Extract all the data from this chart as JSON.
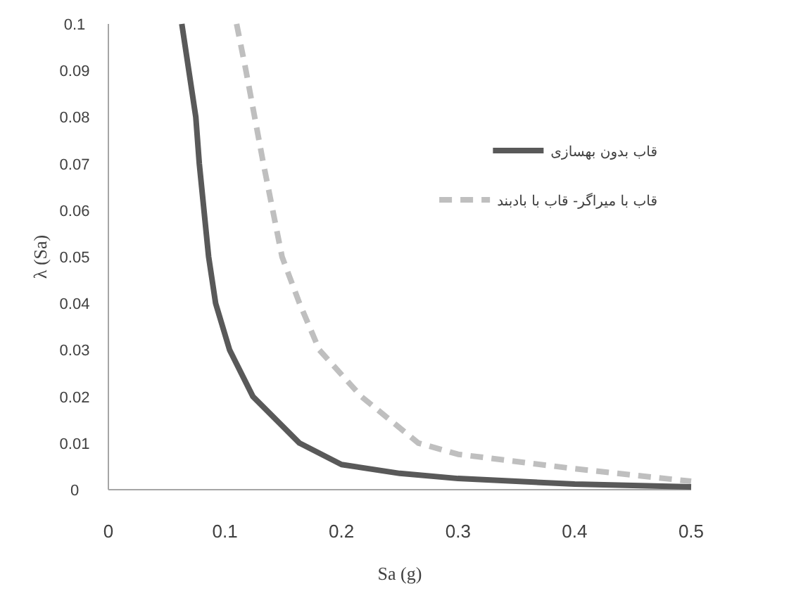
{
  "chart_data": {
    "type": "line",
    "xlabel": "Sa (g)",
    "ylabel": "λ (Sa)",
    "xlim": [
      0,
      0.5
    ],
    "ylim": [
      0,
      0.1
    ],
    "xticks": [
      0,
      0.1,
      0.2,
      0.3,
      0.4,
      0.5
    ],
    "yticks": [
      0,
      0.01,
      0.02,
      0.03,
      0.04,
      0.05,
      0.06,
      0.07,
      0.08,
      0.09,
      0.1
    ],
    "grid": false,
    "legend": "top right",
    "marker": "none",
    "series": [
      {
        "name": "قاب بدون بهسازی",
        "color": "#595959",
        "line_style": "solid",
        "x": [
          0.063,
          0.075,
          0.078,
          0.086,
          0.092,
          0.104,
          0.124,
          0.164,
          0.2,
          0.25,
          0.3,
          0.4,
          0.5
        ],
        "values": [
          0.1,
          0.08,
          0.07,
          0.05,
          0.04,
          0.03,
          0.02,
          0.01,
          0.0054,
          0.0035,
          0.0024,
          0.0012,
          0.0006
        ]
      },
      {
        "name": "قاب با میراگر- قاب با بادبند",
        "color": "#bfbfbf",
        "line_style": "dashed",
        "x": [
          0.11,
          0.118,
          0.133,
          0.149,
          0.164,
          0.181,
          0.217,
          0.266,
          0.3,
          0.4,
          0.5
        ],
        "values": [
          0.1,
          0.09,
          0.07,
          0.05,
          0.04,
          0.03,
          0.02,
          0.01,
          0.0076,
          0.0045,
          0.0018
        ]
      }
    ]
  }
}
